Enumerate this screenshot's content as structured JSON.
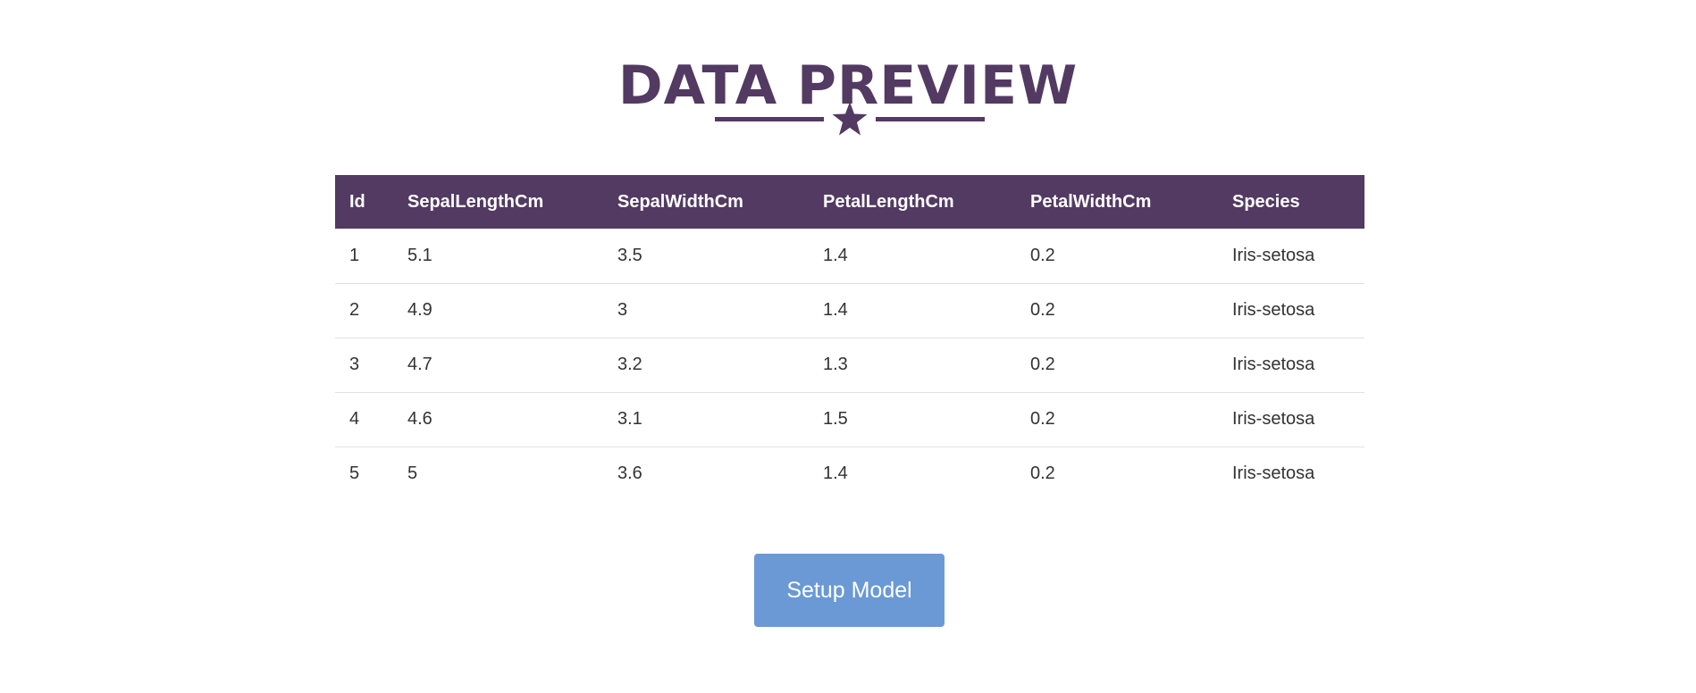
{
  "header": {
    "title": "DATA PREVIEW",
    "divider_icon": "star-icon"
  },
  "table": {
    "columns": [
      "Id",
      "SepalLengthCm",
      "SepalWidthCm",
      "PetalLengthCm",
      "PetalWidthCm",
      "Species"
    ],
    "rows": [
      [
        "1",
        "5.1",
        "3.5",
        "1.4",
        "0.2",
        "Iris-setosa"
      ],
      [
        "2",
        "4.9",
        "3",
        "1.4",
        "0.2",
        "Iris-setosa"
      ],
      [
        "3",
        "4.7",
        "3.2",
        "1.3",
        "0.2",
        "Iris-setosa"
      ],
      [
        "4",
        "4.6",
        "3.1",
        "1.5",
        "0.2",
        "Iris-setosa"
      ],
      [
        "5",
        "5",
        "3.6",
        "1.4",
        "0.2",
        "Iris-setosa"
      ]
    ]
  },
  "actions": {
    "setup_label": "Setup Model"
  },
  "colors": {
    "primary": "#523a62",
    "button": "#6a99d5"
  }
}
